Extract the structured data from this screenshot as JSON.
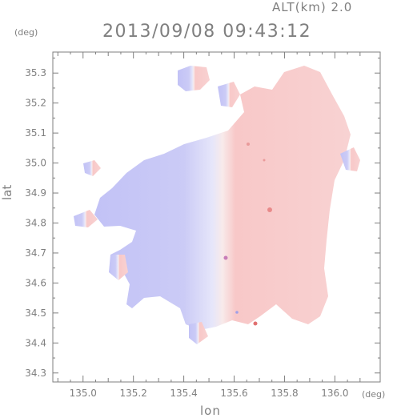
{
  "header": {
    "altitude": "ALT(km) 2.0",
    "timestamp": "2013/09/08 09:43:12"
  },
  "axes": {
    "y_unit": "(deg)",
    "x_unit": "(deg)",
    "xlabel": "lon",
    "ylabel": "lat",
    "x_ticks": [
      "135.0",
      "135.2",
      "135.4",
      "135.6",
      "135.8",
      "136.0"
    ],
    "y_ticks": [
      "35.3",
      "35.2",
      "35.1",
      "35.0",
      "34.9",
      "34.8",
      "34.7",
      "34.6",
      "34.5",
      "34.4",
      "34.3"
    ],
    "xlim": [
      134.88,
      136.18
    ],
    "ylim": [
      34.27,
      35.37
    ]
  },
  "colors": {
    "approaching": "#c8c8f8",
    "receding": "#f8c8c8",
    "frame": "#7f7f7f"
  }
}
